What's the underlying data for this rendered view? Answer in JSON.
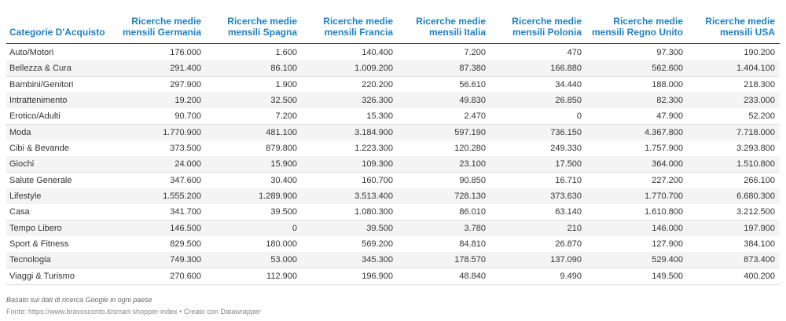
{
  "table": {
    "header": [
      "Categorie D'Acquisto",
      "Ricerche medie mensili Germania",
      "Ricerche medie mensili Spagna",
      "Ricerche medie mensili Francia",
      "Ricerche medie mensili Italia",
      "Ricerche medie mensili Polonia",
      "Ricerche medie mensili Regno Unito",
      "Ricerche medie mensili USA"
    ],
    "rows": [
      [
        "Auto/Motori",
        "176.000",
        "1.600",
        "140.400",
        "7.200",
        "470",
        "97.300",
        "190.200"
      ],
      [
        "Bellezza & Cura",
        "291.400",
        "86.100",
        "1.009.200",
        "87.380",
        "166.880",
        "562.600",
        "1.404.100"
      ],
      [
        "Bambini/Genitori",
        "297.900",
        "1.900",
        "220.200",
        "56.610",
        "34.440",
        "188.000",
        "218.300"
      ],
      [
        "Intrattenimento",
        "19.200",
        "32.500",
        "326.300",
        "49.830",
        "26.850",
        "82.300",
        "233.000"
      ],
      [
        "Erotico/Adulti",
        "90.700",
        "7.200",
        "15.300",
        "2.470",
        "0",
        "47.900",
        "52.200"
      ],
      [
        "Moda",
        "1.770.900",
        "481.100",
        "3.184.900",
        "597.190",
        "736.150",
        "4.367.800",
        "7.718.000"
      ],
      [
        "Cibi & Bevande",
        "373.500",
        "879.800",
        "1.223.300",
        "120.280",
        "249.330",
        "1.757.900",
        "3.293.800"
      ],
      [
        "Giochi",
        "24.000",
        "15.900",
        "109.300",
        "23.100",
        "17.500",
        "364.000",
        "1.510.800"
      ],
      [
        "Salute Generale",
        "347.600",
        "30.400",
        "160.700",
        "90.850",
        "16.710",
        "227.200",
        "266.100"
      ],
      [
        "Lifestyle",
        "1.555.200",
        "1.289.900",
        "3.513.400",
        "728.130",
        "373.630",
        "1.770.700",
        "6.680.300"
      ],
      [
        "Casa",
        "341.700",
        "39.500",
        "1.080.300",
        "86.010",
        "63.140",
        "1.610.800",
        "3.212.500"
      ],
      [
        "Tempo Libero",
        "146.500",
        "0",
        "39.500",
        "3.780",
        "210",
        "146.000",
        "197.900"
      ],
      [
        "Sport & Fitness",
        "829.500",
        "180.000",
        "569.200",
        "84.810",
        "26.870",
        "127.900",
        "384.100"
      ],
      [
        "Tecnologia",
        "749.300",
        "53.000",
        "345.300",
        "178.570",
        "137.090",
        "529.400",
        "873.400"
      ],
      [
        "Viaggi & Turismo",
        "270.600",
        "112.900",
        "196.900",
        "48.840",
        "9.490",
        "149.500",
        "400.200"
      ]
    ]
  },
  "notes": {
    "note": "Basato sui dati di ricerca Google in ogni paese",
    "source": "Fonte: https://www.bravosconto.it/smart-shopper-index • Creato con Datawrapper"
  }
}
